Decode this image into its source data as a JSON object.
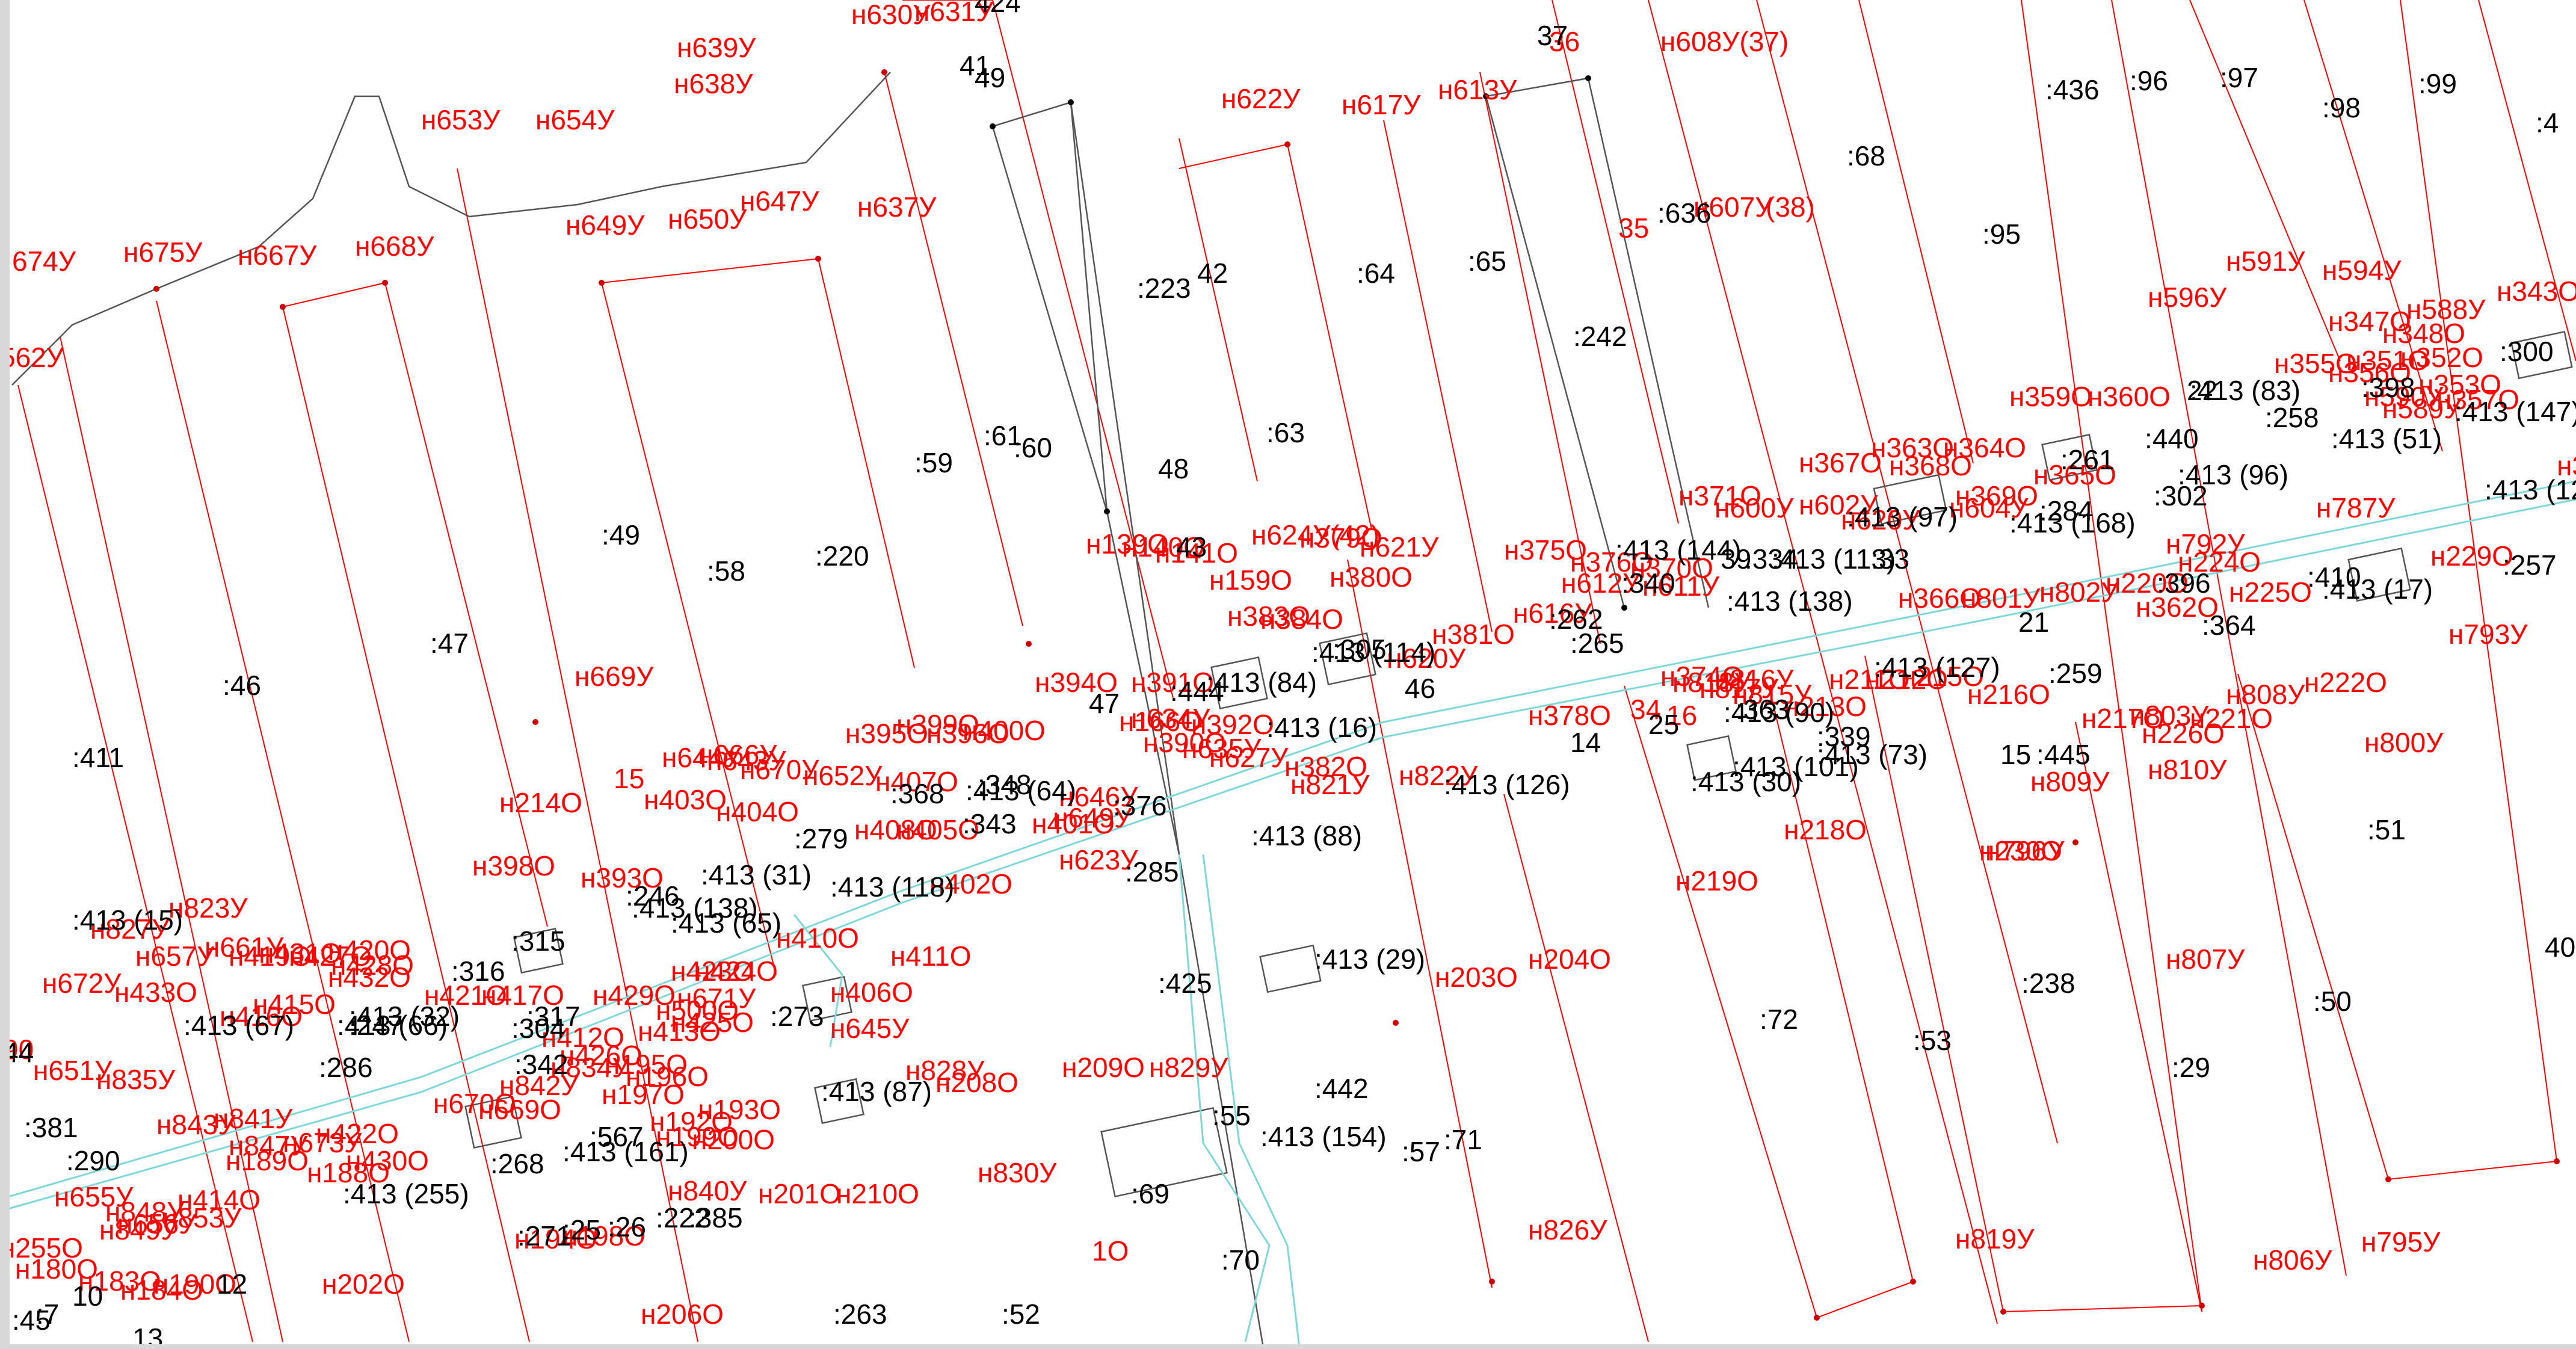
{
  "map": {
    "colors": {
      "background": "#ffffff",
      "plot_boundary": "#ff0000",
      "plot_label": "#ff0000",
      "parcel_label": "#000000",
      "parcel_line": "#444444",
      "road_line": "#7fd7d7",
      "vertex": "#cc0000"
    },
    "red_labels": [
      "н639У",
      "н638У",
      "н630У",
      "н631У",
      "н653У",
      "н654У",
      "н649У",
      "н650У",
      "н647У",
      "н637У",
      "н622У",
      "н617У",
      "н613У",
      "36",
      "н608У(37)",
      "н607У",
      "(38)",
      "35",
      "674У",
      "н675У",
      "н667У",
      "н668У",
      "562У",
      "н591У",
      "н594У",
      "н596У",
      "н588У",
      "н343О",
      "н347О",
      "н348О",
      "н355О",
      "н351О",
      "н352О",
      "н356О",
      "н353О",
      "н359О",
      "н360О",
      "н589У",
      "н590У",
      "н357О",
      "н367О",
      "н363О",
      "н364О",
      "н368О",
      "н365О",
      "н369О",
      "н371О",
      "н600У",
      "н602У",
      "н604У",
      "н620У",
      "н375О",
      "н376О",
      "н612У",
      "н611У",
      "н370О",
      "н139О",
      "н140О",
      "н141О",
      "н379О",
      "н380О",
      "н624У(42)",
      "н621У",
      "н159О",
      "н383О",
      "н384О",
      "н669У",
      "н381О",
      "н616У",
      "н620У",
      "н394О",
      "н391О",
      "н166О",
      "н392О",
      "н390О",
      "н395О",
      "н396О",
      "н399О",
      "н400О",
      "н634У",
      "н635У",
      "н627У",
      "н382О",
      "н821У",
      "н822У",
      "н378О",
      "34",
      "16",
      "н817У",
      "н818У",
      "н816У",
      "н815У",
      "н211О",
      "н212О",
      "н213О",
      "н215О",
      "н216О",
      "н374О",
      "н366О",
      "н801У",
      "н802У",
      "н220О",
      "н362О",
      "н224О",
      "н225О",
      "н792У",
      "н793У",
      "н229О",
      "н346О",
      "н787У",
      "н217О",
      "н803У",
      "н221О",
      "н226О",
      "н810У",
      "н809У",
      "н808У",
      "н222О",
      "н800У",
      "н230О",
      "н796У",
      "н218О",
      "н219О",
      "н214О",
      "15",
      "н666У",
      "н670У",
      "н652У",
      "н403О",
      "н404О",
      "н407О",
      "н408О",
      "н405О",
      "н649У",
      "н646У",
      "н644У",
      "н643У",
      "н401О",
      "н402О",
      "н623У",
      "н398О",
      "н393О",
      "н423О",
      "н424О",
      "н410О",
      "н411О",
      "н406О",
      "н645У",
      "н828У",
      "н208О",
      "н209О",
      "н829У",
      "н203О",
      "н204О",
      "н827У",
      "н823У",
      "н657У",
      "н661У",
      "н419О",
      "н431О",
      "н427О",
      "н420О",
      "н432О",
      "н428О",
      "н672У",
      "н433О",
      "н415О",
      "н416О",
      "н421О",
      "н417О",
      "н429О",
      "н671У",
      "н500О",
      "н651У",
      "н835У",
      "н412О",
      "н413О",
      "н425О",
      "н426О",
      "н834У",
      "н195О",
      "н196О",
      "н197О",
      "н192О",
      "н193О",
      "н199О",
      "н200О",
      "н670О",
      "н669О",
      "н842У",
      "н843У",
      "н841У",
      "н422О",
      "н430О",
      "н673У",
      "н188О",
      "н189О",
      "н847У",
      "н848У",
      "н849У",
      "н655У",
      "н656У",
      "н414О",
      "н853У",
      "н840У",
      "н201О",
      "н210О",
      "н830У",
      "н826У",
      "н819У",
      "н806У",
      "н795У",
      "н807У",
      "н194О",
      "н198О",
      "н180О",
      "н183О",
      "н184О",
      "н190О",
      "н202О",
      "н206О",
      "1О",
      "90",
      "н255О"
    ],
    "black_labels": [
      "41",
      "49",
      "37",
      "424",
      ":436",
      ":96",
      ":97",
      ":98",
      ":99",
      ":4",
      ":68",
      ":95",
      ":223",
      "42",
      ":64",
      ":65",
      ":636",
      ":242",
      ":300",
      ":61",
      "48",
      ":63",
      ":60",
      ":59",
      ":49",
      ":58",
      ":220",
      ":47",
      ":46",
      ":411",
      "43",
      ":413 (147)",
      ":413 (51)",
      ":261",
      ":440",
      ":398",
      ":413 (128)",
      ":413 (96)",
      ":258",
      "22",
      ":302",
      ":284",
      ":413 (97)",
      ":413 (168)",
      ":33",
      ":334",
      ":340",
      "39",
      ":413 (113)",
      ":413 (144)",
      ":413 (138)",
      ":396",
      ":410",
      ":413 (17)",
      ":257",
      "21",
      ":364",
      ":413 (83)",
      ":262",
      ":265",
      ":413 (114)",
      ":305",
      "46",
      "47",
      ":413 (84)",
      ":444",
      ":413 (16)",
      ":413 (90)",
      ":363",
      ":413 (127)",
      ":259",
      "14",
      ":339",
      ":413 (73)",
      "15",
      ":445",
      ":413 (126)",
      ":413 (101)",
      ":413 (30)",
      ":413 (88)",
      ":285",
      ":376",
      ":343",
      ":348",
      ":413 (64)",
      ":368",
      ":279",
      ":413 (118)",
      ":413 (31)",
      ":246",
      ":413 (138)",
      ":413 (65)",
      ":315",
      ":316",
      ":273",
      ":317",
      ":413 (32)",
      ":413 (66)",
      ":247",
      ":413 (67)",
      ":304",
      ":342",
      ":286",
      ":381",
      ":290",
      ":413 (87)",
      ":567",
      ":413 (161)",
      ":268",
      ":413 (255)",
      ":425",
      ":413 (29)",
      ":413 (154)",
      ":55",
      ":442",
      ":57",
      ":69",
      ":70",
      ":71",
      ":72",
      ":53",
      ":238",
      ":29",
      ":50",
      ":51",
      ":263",
      ":52",
      ":271",
      ":25",
      ":26",
      ":222",
      ":385",
      ":45",
      ":7",
      "10",
      "12",
      "13",
      ":413 (15)",
      "40",
      "44",
      "25"
    ]
  }
}
